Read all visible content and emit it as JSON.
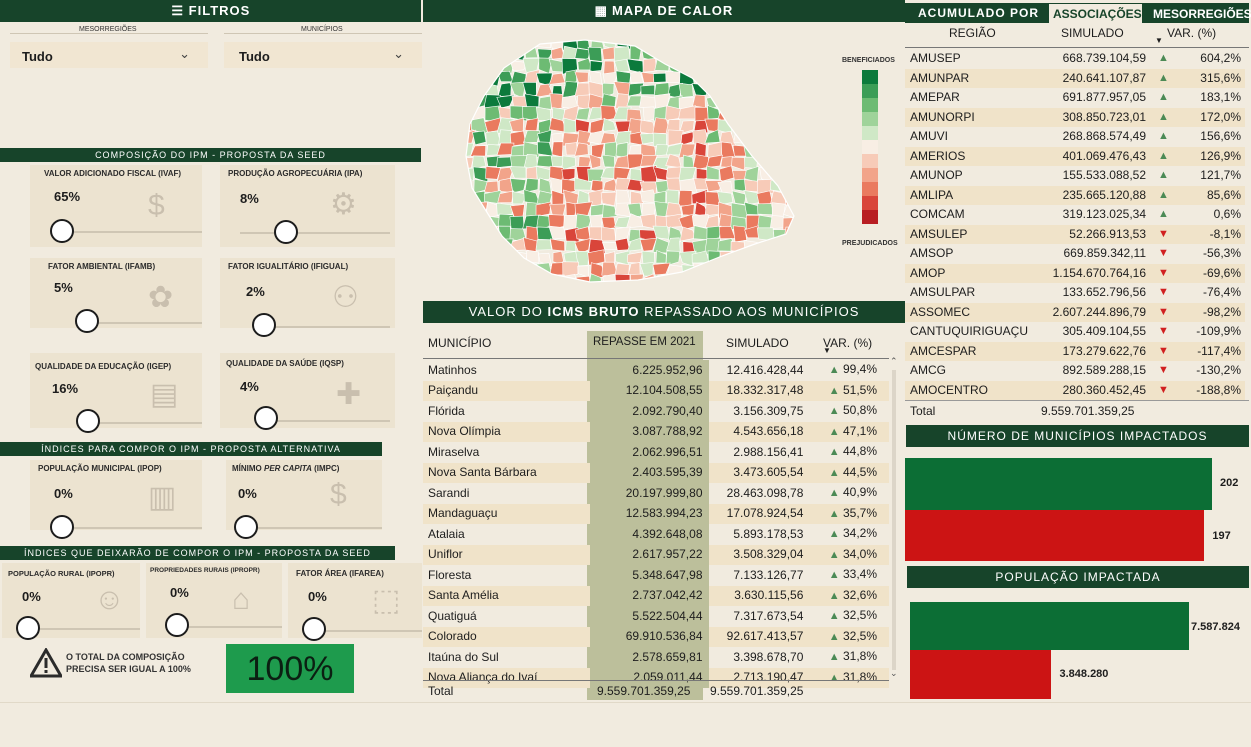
{
  "filters": {
    "title": "FILTROS",
    "meso_label": "MESORREGIÕES",
    "meso_value": "Tudo",
    "mun_label": "MUNICÍPIOS",
    "mun_value": "Tudo"
  },
  "ipm_seed": {
    "title": "COMPOSIÇÃO DO IPM - PROPOSTA DA SEED",
    "items": [
      {
        "label": "VALOR ADICIONADO FISCAL (IVAF)",
        "value": "65%",
        "icon": "money-hand-icon"
      },
      {
        "label": "PRODUÇÃO AGROPECUÁRIA (IPA)",
        "value": "8%",
        "icon": "tractor-icon"
      },
      {
        "label": "FATOR AMBIENTAL (IFAMB)",
        "value": "5%",
        "icon": "plant-hands-icon"
      },
      {
        "label": "FATOR IGUALITÁRIO (IFIGUAL)",
        "value": "2%",
        "icon": "people-network-icon"
      },
      {
        "label": "QUALIDADE DA EDUCAÇÃO (IGEP)",
        "value": "16%",
        "icon": "books-icon"
      },
      {
        "label": "QUALIDADE DA SAÚDE (IQSP)",
        "value": "4%",
        "icon": "health-hand-icon"
      }
    ]
  },
  "ipm_alt": {
    "title": "ÍNDICES PARA COMPOR O IPM - PROPOSTA ALTERNATIVA",
    "items": [
      {
        "label": "POPULAÇÃO MUNICIPAL (IPOP)",
        "value": "0%",
        "icon": "city-people-icon"
      },
      {
        "label_a": "MÍNIMO ",
        "label_b": "PER CAPITA",
        "label_c": " (IMPC)",
        "value": "0%",
        "icon": "coins-hand-icon"
      }
    ]
  },
  "ipm_removed": {
    "title": "ÍNDICES QUE DEIXARÃO DE COMPOR O IPM - PROPOSTA DA SEED",
    "items": [
      {
        "label": "POPULAÇÃO RURAL (IPOPR)",
        "value": "0%",
        "icon": "farmer-icon"
      },
      {
        "label": "PROPRIEDADES RURAIS (IPROPR)",
        "value": "0%",
        "icon": "farm-field-icon"
      },
      {
        "label": "FATOR ÁREA (IFAREA)",
        "value": "0%",
        "icon": "area-icon"
      }
    ]
  },
  "warning": {
    "line1": "O TOTAL DA COMPOSIÇÃO",
    "line2": "PRECISA SER IGUAL A 100%",
    "total": "100%"
  },
  "map": {
    "title": "MAPA DE CALOR",
    "legend_top": "BENEFICIADOS",
    "legend_bottom": "PREJUDICADOS",
    "colors": [
      "#0c7a3c",
      "#3c9d57",
      "#6dbb73",
      "#9fd39a",
      "#cfe8c6",
      "#f8eee4",
      "#f7cbb8",
      "#f2a48a",
      "#ea7a5f",
      "#d9453a",
      "#b81e23"
    ]
  },
  "icms": {
    "title_a": "VALOR DO ",
    "title_b": "ICMS BRUTO",
    "title_c": " REPASSADO AOS MUNICÍPIOS",
    "headers": [
      "MUNICÍPIO",
      "REPASSE EM 2021",
      "SIMULADO",
      "VAR. (%)"
    ],
    "rows": [
      [
        "Matinhos",
        "6.225.952,96",
        "12.416.428,44",
        "99,4%"
      ],
      [
        "Paiçandu",
        "12.104.508,55",
        "18.332.317,48",
        "51,5%"
      ],
      [
        "Flórida",
        "2.092.790,40",
        "3.156.309,75",
        "50,8%"
      ],
      [
        "Nova Olímpia",
        "3.087.788,92",
        "4.543.656,18",
        "47,1%"
      ],
      [
        "Miraselva",
        "2.062.996,51",
        "2.988.156,41",
        "44,8%"
      ],
      [
        "Nova Santa Bárbara",
        "2.403.595,39",
        "3.473.605,54",
        "44,5%"
      ],
      [
        "Sarandi",
        "20.197.999,80",
        "28.463.098,78",
        "40,9%"
      ],
      [
        "Mandaguaçu",
        "12.583.994,23",
        "17.078.924,54",
        "35,7%"
      ],
      [
        "Atalaia",
        "4.392.648,08",
        "5.893.178,53",
        "34,2%"
      ],
      [
        "Uniflor",
        "2.617.957,22",
        "3.508.329,04",
        "34,0%"
      ],
      [
        "Floresta",
        "5.348.647,98",
        "7.133.126,77",
        "33,4%"
      ],
      [
        "Santa Amélia",
        "2.737.042,42",
        "3.630.115,56",
        "32,6%"
      ],
      [
        "Quatiguá",
        "5.522.504,44",
        "7.317.673,54",
        "32,5%"
      ],
      [
        "Colorado",
        "69.910.536,84",
        "92.617.413,57",
        "32,5%"
      ],
      [
        "Itaúna do Sul",
        "2.578.659,81",
        "3.398.678,70",
        "31,8%"
      ],
      [
        "Nova Aliança do Ivaí",
        "2.059.011,44",
        "2.713.190,47",
        "31,8%"
      ]
    ],
    "total_label": "Total",
    "total_repasse": "9.559.701.359,25",
    "total_simulado": "9.559.701.359,25"
  },
  "assoc": {
    "title": "ACUMULADO POR",
    "tab_assoc": "ASSOCIAÇÕES",
    "tab_meso": "MESORREGIÕES",
    "headers": [
      "REGIÃO",
      "SIMULADO",
      "VAR. (%)"
    ],
    "rows": [
      [
        "AMUSEP",
        "668.739.104,59",
        "604,2%",
        "up"
      ],
      [
        "AMUNPAR",
        "240.641.107,87",
        "315,6%",
        "up"
      ],
      [
        "AMEPAR",
        "691.877.957,05",
        "183,1%",
        "up"
      ],
      [
        "AMUNORPI",
        "308.850.723,01",
        "172,0%",
        "up"
      ],
      [
        "AMUVI",
        "268.868.574,49",
        "156,6%",
        "up"
      ],
      [
        "AMERIOS",
        "401.069.476,43",
        "126,9%",
        "up"
      ],
      [
        "AMUNOP",
        "155.533.088,52",
        "121,7%",
        "up"
      ],
      [
        "AMLIPA",
        "235.665.120,88",
        "85,6%",
        "up"
      ],
      [
        "COMCAM",
        "319.123.025,34",
        "0,6%",
        "up"
      ],
      [
        "AMSULEP",
        "52.266.913,53",
        "-8,1%",
        "down"
      ],
      [
        "AMSOP",
        "669.859.342,11",
        "-56,3%",
        "down"
      ],
      [
        "AMOP",
        "1.154.670.764,16",
        "-69,6%",
        "down"
      ],
      [
        "AMSULPAR",
        "133.652.796,56",
        "-76,4%",
        "down"
      ],
      [
        "ASSOMEC",
        "2.607.244.896,79",
        "-98,2%",
        "down"
      ],
      [
        "CANTUQUIRIGUAÇU",
        "305.409.104,55",
        "-109,9%",
        "down"
      ],
      [
        "AMCESPAR",
        "173.279.622,76",
        "-117,4%",
        "down"
      ],
      [
        "AMCG",
        "892.589.288,15",
        "-130,2%",
        "down"
      ],
      [
        "AMOCENTRO",
        "280.360.452,45",
        "-188,8%",
        "down"
      ]
    ],
    "total_label": "Total",
    "total_value": "9.559.701.359,25"
  },
  "impact_mun": {
    "title": "NÚMERO DE MUNICÍPIOS IMPACTADOS",
    "benefited": 202,
    "harmed": 197,
    "benefited_label": "202",
    "harmed_label": "197"
  },
  "impact_pop": {
    "title": "POPULAÇÃO IMPACTADA",
    "benefited": 7587824,
    "harmed": 3848280,
    "benefited_label": "7.587.824",
    "harmed_label": "3.848.280"
  }
}
